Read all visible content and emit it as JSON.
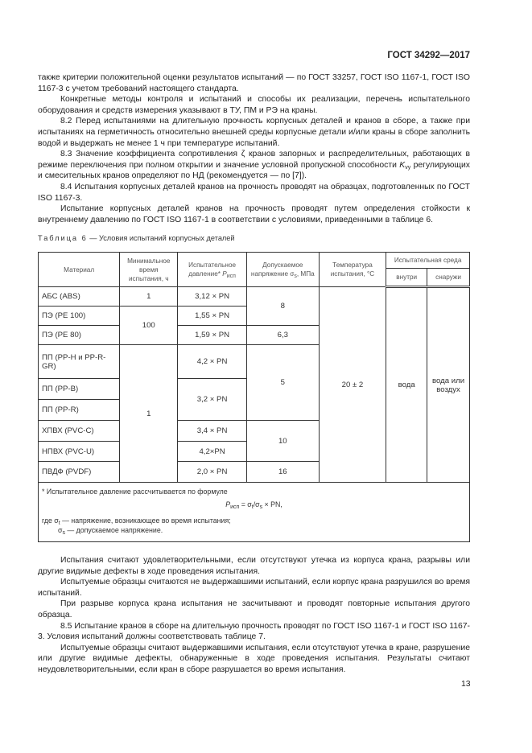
{
  "header": {
    "standard": "ГОСТ 34292—2017"
  },
  "top_paragraphs": {
    "p1": "также критерии положительной оценки результатов испытаний — по ГОСТ 33257, ГОСТ ISO 1167-1, ГОСТ ISO 1167-3 с учетом требований настоящего стандарта.",
    "p2": "Конкретные методы контроля и испытаний и способы их реализации, перечень испытательного оборудования и средств измерения указывают в ТУ, ПМ и РЭ на краны.",
    "p3": "8.2 Перед испытаниями на длительную прочность корпусных деталей и кранов в сборе, а также при испытаниях на герметичность относительно внешней среды корпусные детали и/или краны в сборе заполнить водой и выдержать не менее 1 ч при температуре испытаний.",
    "p4_a": "8.3 Значение коэффициента сопротивления ζ кранов запорных и распределительных, работаю­щих в режиме переключения при полном открытии и значение условной пропускной способности ",
    "p4_sym": "K",
    "p4_sub": "vy",
    "p4_b": " регулирующих и смесительных кранов определяют по НД (рекомендуется — по [7]).",
    "p5": "8.4 Испытания корпусных деталей кранов на прочность проводят на образцах, подготовленных по ГОСТ ISO 1167-3.",
    "p6": "Испытание корпусных деталей кранов на прочность проводят путем определения стойкости к внутреннему давлению по ГОСТ ISO 1167-1 в соответствии с условиями, приведенными в таблице 6."
  },
  "table": {
    "caption_label": "Таблица 6",
    "caption_title": " — Условия испытаний корпусных деталей",
    "headers": {
      "material": "Материал",
      "time": "Минимальное время испытания, ч",
      "pressure": "Испытательное давление*",
      "pressure_sym": "P",
      "pressure_sub": "исп",
      "stress": "Допускаемое напряжение σ",
      "stress_sub": "s",
      "stress_unit": ", МПа",
      "temp": "Температура испытания, °С",
      "medium": "Испытательная среда",
      "inside": "внутри",
      "outside": "снаружи"
    },
    "rows": [
      {
        "material": "АБС (ABS)",
        "pressure": "3,12 × PN"
      },
      {
        "material": "ПЭ (PE 100)",
        "pressure": "1,55 × PN"
      },
      {
        "material": "ПЭ (PE 80)",
        "pressure": "1,59 × PN"
      },
      {
        "material": "ПП (PP-H и PP-R-GR)",
        "pressure": "4,2 × PN"
      },
      {
        "material": "ПП (PP-B)"
      },
      {
        "material": "ПП (PP-R)"
      },
      {
        "material": "ХПВХ (PVC-C)",
        "pressure": "3,4 × PN"
      },
      {
        "material": "НПВХ (PVC-U)",
        "pressure": "4,2×PN"
      },
      {
        "material": "ПВДФ (PVDF)",
        "pressure": "2,0 × PN"
      }
    ],
    "merged": {
      "time_abs": "1",
      "time_pe": "100",
      "time_rest": "1",
      "pressure_pp": "3,2 × PN",
      "stress_8": "8",
      "stress_63": "6,3",
      "stress_5": "5",
      "stress_10": "10",
      "stress_16": "16",
      "temp": "20 ± 2",
      "inside": "вода",
      "outside": "вода или воздух"
    },
    "footnote": {
      "intro": "* Испытательное давление рассчитывается по формуле",
      "formula_lhs": "P",
      "formula_lhs_sub": "исп",
      "formula_rhs": " = σ",
      "formula_t": "t",
      "formula_mid": "/σ",
      "formula_s": "s",
      "formula_end": " × PN,",
      "where1_a": "где σ",
      "where1_sub": "t",
      "where1_b": " — напряжение, возникающее во время испытания;",
      "where2_a": "σ",
      "where2_sub": "s",
      "where2_b": " — допускаемое напряжение."
    }
  },
  "bottom_paragraphs": {
    "p1": "Испытания считают удовлетворительными, если отсутствуют утечка из корпуса крана, разрывы или другие видимые дефекты в ходе проведения испытания.",
    "p2": "Испытуемые образцы считаются не выдержавшими испытаний, если корпус крана разрушился во время испытаний.",
    "p3": "При разрыве корпуса крана испытания не засчитывают и проводят повторные испытания другого образца.",
    "p4": "8.5 Испытание кранов в сборе на длительную прочность проводят по ГОСТ ISO 1167-1 и ГОСТ ISO 1167-3. Условия испытаний должны соответствовать таблице 7.",
    "p5": "Испытуемые образцы считают выдержавшими испытания, если отсутствуют утечка в кране, разрушение или другие видимые дефекты, обнаруженные в ходе проведения испытания. Результаты считают неудовлетворительными, если кран в сборе разрушается во время испытания."
  },
  "page_number": "13"
}
